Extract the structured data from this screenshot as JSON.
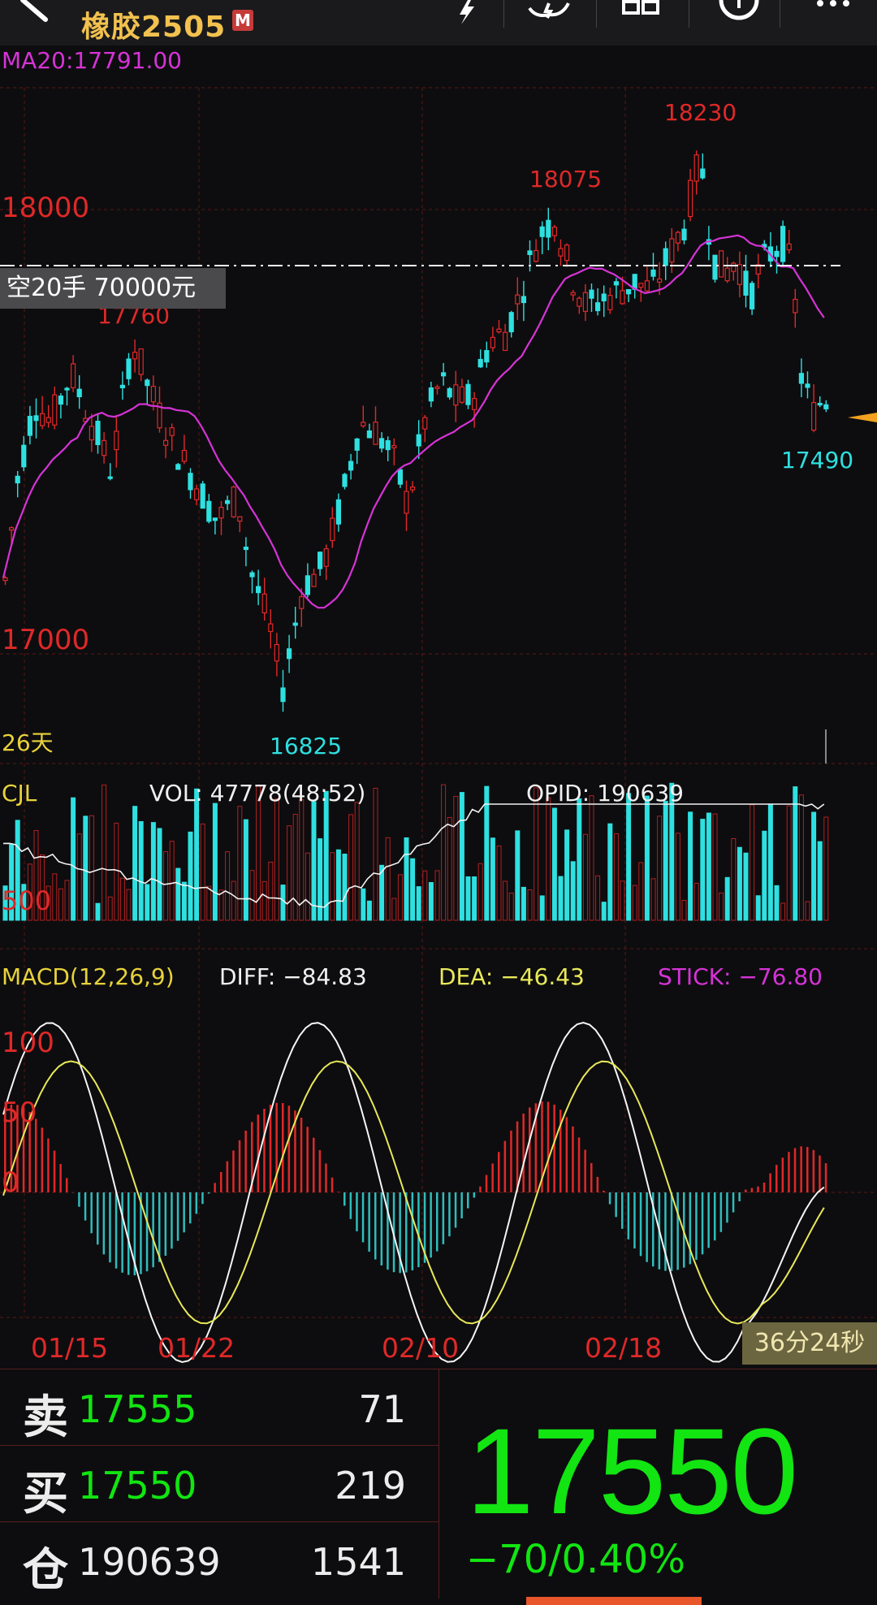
{
  "header": {
    "title": "橡胶2505",
    "badge": "M"
  },
  "indicators": {
    "ma20": "MA20:17791.00"
  },
  "price_axis": {
    "upper": "18000",
    "lower": "17000"
  },
  "markers": {
    "high_1": "18230",
    "high_2": "18075",
    "high_3": "17760",
    "low_1": "16825",
    "low_2": "17490"
  },
  "position_tag": "空20手  70000元",
  "days_label": "26天",
  "volume_panel": {
    "name": "CJL",
    "vol": "VOL: 47778(48:52)",
    "opid": "OPID: 190639",
    "axis": "500"
  },
  "macd_panel": {
    "name": "MACD(12,26,9)",
    "diff": "DIFF: −84.83",
    "dea": "DEA: −46.43",
    "stick": "STICK: −76.80",
    "axis_100": "100",
    "axis_50": "50",
    "axis_0": "0"
  },
  "dates": [
    "01/15",
    "01/22",
    "02/10",
    "02/18"
  ],
  "timer": "36分24秒",
  "quotes": {
    "sell": {
      "key": "卖",
      "price": "17555",
      "qty": "71"
    },
    "buy": {
      "key": "买",
      "price": "17550",
      "qty": "219"
    },
    "open_interest": {
      "key": "仓",
      "value": "190639",
      "change": "1541"
    }
  },
  "last_price": "17550",
  "change": "−70/0.40%",
  "colors": {
    "up": "#e02828",
    "down": "#2fe0e0",
    "ma": "#d633d6",
    "last": "#12e512",
    "dea": "#e8e85a"
  },
  "chart_data": {
    "type": "candlestick",
    "ma20_last": 17791.0,
    "price_labels": [
      18000,
      17000
    ],
    "high": 18230,
    "low": 16825,
    "last": 17550,
    "volume": 47778,
    "open_interest": 190639,
    "macd": {
      "diff": -84.83,
      "dea": -46.43,
      "stick": -76.8
    },
    "macd_axis": [
      100,
      50,
      0
    ]
  }
}
